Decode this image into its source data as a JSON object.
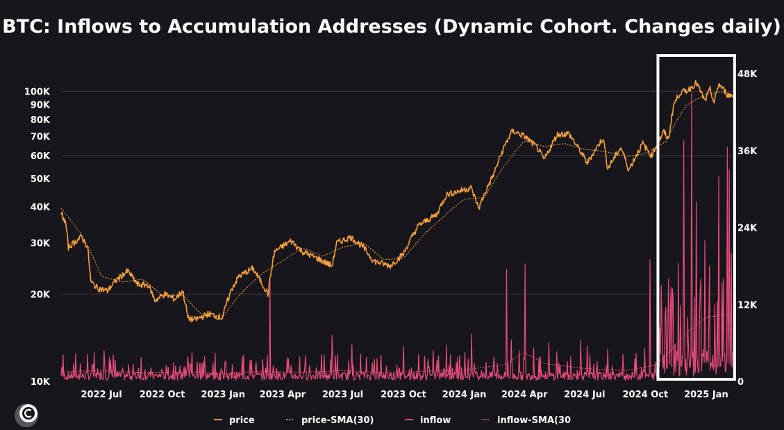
{
  "chart_data": {
    "type": "line",
    "title": "BTC: Inflows to Accumulation Addresses (Dynamic Cohort. Changes daily)",
    "xlabel": "",
    "ylabel_left": "",
    "ylabel_right": "",
    "y_left_scale": "log",
    "y_left_range": [
      10000,
      115000
    ],
    "y_right_range": [
      0,
      48000
    ],
    "x_range": [
      "2022-05-01",
      "2025-02-10"
    ],
    "x_ticks": [
      {
        "date": "2022-07-01",
        "label": "2022 Jul"
      },
      {
        "date": "2022-10-01",
        "label": "2022 Oct"
      },
      {
        "date": "2023-01-01",
        "label": "2023 Jan"
      },
      {
        "date": "2023-04-01",
        "label": "2023 Apr"
      },
      {
        "date": "2023-07-01",
        "label": "2023 Jul"
      },
      {
        "date": "2023-10-01",
        "label": "2023 Oct"
      },
      {
        "date": "2024-01-01",
        "label": "2024 Jan"
      },
      {
        "date": "2024-04-01",
        "label": "2024 Apr"
      },
      {
        "date": "2024-07-01",
        "label": "2024 Jul"
      },
      {
        "date": "2024-10-01",
        "label": "2024 Oct"
      },
      {
        "date": "2025-01-01",
        "label": "2025 Jan"
      }
    ],
    "y_left_ticks": [
      {
        "value": 10000,
        "label": "10K"
      },
      {
        "value": 20000,
        "label": "20K"
      },
      {
        "value": 30000,
        "label": "30K"
      },
      {
        "value": 40000,
        "label": "40K"
      },
      {
        "value": 50000,
        "label": "50K"
      },
      {
        "value": 60000,
        "label": "60K"
      },
      {
        "value": 70000,
        "label": "70K"
      },
      {
        "value": 80000,
        "label": "80K"
      },
      {
        "value": 90000,
        "label": "90K"
      },
      {
        "value": 100000,
        "label": "100K"
      }
    ],
    "y_right_ticks": [
      {
        "value": 0,
        "label": "0"
      },
      {
        "value": 12000,
        "label": "12K"
      },
      {
        "value": 24000,
        "label": "24K"
      },
      {
        "value": 36000,
        "label": "36K"
      },
      {
        "value": 48000,
        "label": "48K"
      }
    ],
    "grid_y": [
      20000,
      60000,
      100000
    ],
    "legend_position": "bottom",
    "highlight_box": {
      "x_start": "2024-10-20",
      "x_end": "2025-02-13"
    },
    "series": [
      {
        "name": "price",
        "axis": "left",
        "color": "#f7a13d",
        "style": "solid",
        "points": [
          [
            "2022-05-01",
            38000
          ],
          [
            "2022-05-08",
            35000
          ],
          [
            "2022-05-12",
            29000
          ],
          [
            "2022-05-20",
            30000
          ],
          [
            "2022-06-01",
            31500
          ],
          [
            "2022-06-10",
            29000
          ],
          [
            "2022-06-15",
            22000
          ],
          [
            "2022-06-25",
            21000
          ],
          [
            "2022-07-10",
            20500
          ],
          [
            "2022-07-25",
            22500
          ],
          [
            "2022-08-10",
            24000
          ],
          [
            "2022-08-25",
            21500
          ],
          [
            "2022-09-10",
            21500
          ],
          [
            "2022-09-20",
            19000
          ],
          [
            "2022-10-05",
            20000
          ],
          [
            "2022-10-20",
            19200
          ],
          [
            "2022-11-01",
            20500
          ],
          [
            "2022-11-09",
            16500
          ],
          [
            "2022-11-20",
            16300
          ],
          [
            "2022-12-10",
            17100
          ],
          [
            "2022-12-31",
            16550
          ],
          [
            "2023-01-14",
            20800
          ],
          [
            "2023-01-25",
            23000
          ],
          [
            "2023-02-15",
            24500
          ],
          [
            "2023-03-10",
            20000
          ],
          [
            "2023-03-20",
            28000
          ],
          [
            "2023-04-14",
            30500
          ],
          [
            "2023-05-01",
            28000
          ],
          [
            "2023-05-20",
            26800
          ],
          [
            "2023-06-15",
            25000
          ],
          [
            "2023-06-22",
            30000
          ],
          [
            "2023-07-13",
            31400
          ],
          [
            "2023-07-31",
            29200
          ],
          [
            "2023-08-17",
            26000
          ],
          [
            "2023-09-11",
            25000
          ],
          [
            "2023-10-01",
            27500
          ],
          [
            "2023-10-24",
            34500
          ],
          [
            "2023-11-20",
            37500
          ],
          [
            "2023-12-05",
            44000
          ],
          [
            "2024-01-11",
            46500
          ],
          [
            "2024-01-23",
            39500
          ],
          [
            "2024-02-15",
            52000
          ],
          [
            "2024-03-05",
            67000
          ],
          [
            "2024-03-14",
            73000
          ],
          [
            "2024-04-01",
            70000
          ],
          [
            "2024-04-20",
            64000
          ],
          [
            "2024-05-01",
            58000
          ],
          [
            "2024-05-21",
            71000
          ],
          [
            "2024-06-07",
            71500
          ],
          [
            "2024-07-05",
            56500
          ],
          [
            "2024-07-29",
            69000
          ],
          [
            "2024-08-05",
            54000
          ],
          [
            "2024-08-25",
            64000
          ],
          [
            "2024-09-06",
            53500
          ],
          [
            "2024-09-27",
            66000
          ],
          [
            "2024-10-10",
            60000
          ],
          [
            "2024-10-29",
            72500
          ],
          [
            "2024-11-05",
            68000
          ],
          [
            "2024-11-13",
            90000
          ],
          [
            "2024-11-22",
            98500
          ],
          [
            "2024-12-05",
            101000
          ],
          [
            "2024-12-17",
            107000
          ],
          [
            "2024-12-30",
            92500
          ],
          [
            "2025-01-07",
            101500
          ],
          [
            "2025-01-13",
            91000
          ],
          [
            "2025-01-20",
            106000
          ],
          [
            "2025-02-03",
            97000
          ],
          [
            "2025-02-10",
            96500
          ]
        ]
      },
      {
        "name": "price-SMA(30)",
        "axis": "left",
        "color": "#f7a13d",
        "style": "dotted",
        "points": [
          [
            "2022-05-01",
            39500
          ],
          [
            "2022-06-01",
            32000
          ],
          [
            "2022-07-01",
            23000
          ],
          [
            "2022-08-01",
            22000
          ],
          [
            "2022-09-01",
            22500
          ],
          [
            "2022-10-01",
            19800
          ],
          [
            "2022-11-01",
            19800
          ],
          [
            "2022-12-01",
            16800
          ],
          [
            "2023-01-01",
            16800
          ],
          [
            "2023-02-01",
            20500
          ],
          [
            "2023-03-01",
            23500
          ],
          [
            "2023-04-01",
            26000
          ],
          [
            "2023-05-01",
            28800
          ],
          [
            "2023-06-01",
            27000
          ],
          [
            "2023-07-01",
            29000
          ],
          [
            "2023-08-01",
            30000
          ],
          [
            "2023-09-01",
            26300
          ],
          [
            "2023-10-01",
            26500
          ],
          [
            "2023-11-01",
            32000
          ],
          [
            "2023-12-01",
            37000
          ],
          [
            "2024-01-01",
            42500
          ],
          [
            "2024-02-01",
            43000
          ],
          [
            "2024-03-01",
            55000
          ],
          [
            "2024-04-01",
            67500
          ],
          [
            "2024-05-01",
            64500
          ],
          [
            "2024-06-01",
            66000
          ],
          [
            "2024-07-01",
            63000
          ],
          [
            "2024-08-01",
            62000
          ],
          [
            "2024-09-01",
            59500
          ],
          [
            "2024-10-01",
            61000
          ],
          [
            "2024-11-01",
            67000
          ],
          [
            "2024-12-01",
            89000
          ],
          [
            "2025-01-01",
            98000
          ],
          [
            "2025-02-01",
            99500
          ]
        ]
      },
      {
        "name": "inflow",
        "axis": "right",
        "color": "#ea4c7d",
        "style": "solid",
        "baseline": 1200,
        "spikes": [
          [
            "2022-05-20",
            2800
          ],
          [
            "2022-06-10",
            4200
          ],
          [
            "2022-06-18",
            2600
          ],
          [
            "2022-07-05",
            4800
          ],
          [
            "2022-07-15",
            3200
          ],
          [
            "2022-08-02",
            2100
          ],
          [
            "2022-09-05",
            1800
          ],
          [
            "2022-10-10",
            2200
          ],
          [
            "2022-11-09",
            3800
          ],
          [
            "2022-11-15",
            4500
          ],
          [
            "2022-12-05",
            2000
          ],
          [
            "2023-01-15",
            2600
          ],
          [
            "2023-02-01",
            4100
          ],
          [
            "2023-02-20",
            3000
          ],
          [
            "2023-03-13",
            16200
          ],
          [
            "2023-04-10",
            3500
          ],
          [
            "2023-05-05",
            2800
          ],
          [
            "2023-06-15",
            7200
          ],
          [
            "2023-06-20",
            4000
          ],
          [
            "2023-07-15",
            5800
          ],
          [
            "2023-08-18",
            3500
          ],
          [
            "2023-09-05",
            2400
          ],
          [
            "2023-10-01",
            5500
          ],
          [
            "2023-10-24",
            4200
          ],
          [
            "2023-11-15",
            4800
          ],
          [
            "2023-12-05",
            5600
          ],
          [
            "2024-01-02",
            4500
          ],
          [
            "2024-01-12",
            7400
          ],
          [
            "2024-02-15",
            3800
          ],
          [
            "2024-03-05",
            17500
          ],
          [
            "2024-03-12",
            6500
          ],
          [
            "2024-03-24",
            4800
          ],
          [
            "2024-04-02",
            18300
          ],
          [
            "2024-04-15",
            5200
          ],
          [
            "2024-05-08",
            6100
          ],
          [
            "2024-05-20",
            4600
          ],
          [
            "2024-06-10",
            3800
          ],
          [
            "2024-06-25",
            6400
          ],
          [
            "2024-07-05",
            5500
          ],
          [
            "2024-08-05",
            5000
          ],
          [
            "2024-08-28",
            4200
          ],
          [
            "2024-09-15",
            3500
          ],
          [
            "2024-09-30",
            5100
          ],
          [
            "2024-10-08",
            19000
          ],
          [
            "2024-10-25",
            15000
          ],
          [
            "2024-11-05",
            16000
          ],
          [
            "2024-11-12",
            13000
          ],
          [
            "2024-11-20",
            18500
          ],
          [
            "2024-11-28",
            37500
          ],
          [
            "2024-12-04",
            10000
          ],
          [
            "2024-12-10",
            45000
          ],
          [
            "2024-12-17",
            28000
          ],
          [
            "2024-12-24",
            16000
          ],
          [
            "2024-12-30",
            22000
          ],
          [
            "2025-01-06",
            18000
          ],
          [
            "2025-01-14",
            12000
          ],
          [
            "2025-01-20",
            32000
          ],
          [
            "2025-01-27",
            16000
          ],
          [
            "2025-02-02",
            36500
          ],
          [
            "2025-02-05",
            33000
          ],
          [
            "2025-02-08",
            20000
          ]
        ]
      },
      {
        "name": "inflow-SMA(30",
        "axis": "right",
        "color": "#ea4c7d",
        "style": "dotted",
        "points": [
          [
            "2022-05-01",
            1500
          ],
          [
            "2022-07-01",
            1700
          ],
          [
            "2022-09-01",
            1300
          ],
          [
            "2022-11-01",
            1500
          ],
          [
            "2023-01-01",
            1200
          ],
          [
            "2023-03-01",
            1600
          ],
          [
            "2023-05-01",
            1400
          ],
          [
            "2023-07-01",
            1700
          ],
          [
            "2023-09-01",
            1300
          ],
          [
            "2023-11-01",
            1600
          ],
          [
            "2024-01-01",
            1800
          ],
          [
            "2024-03-01",
            2600
          ],
          [
            "2024-04-01",
            4500
          ],
          [
            "2024-05-01",
            2800
          ],
          [
            "2024-07-01",
            2000
          ],
          [
            "2024-09-01",
            1700
          ],
          [
            "2024-10-15",
            2500
          ],
          [
            "2024-11-01",
            4000
          ],
          [
            "2024-12-01",
            7500
          ],
          [
            "2025-01-01",
            10000
          ],
          [
            "2025-02-10",
            10500
          ]
        ]
      }
    ]
  }
}
